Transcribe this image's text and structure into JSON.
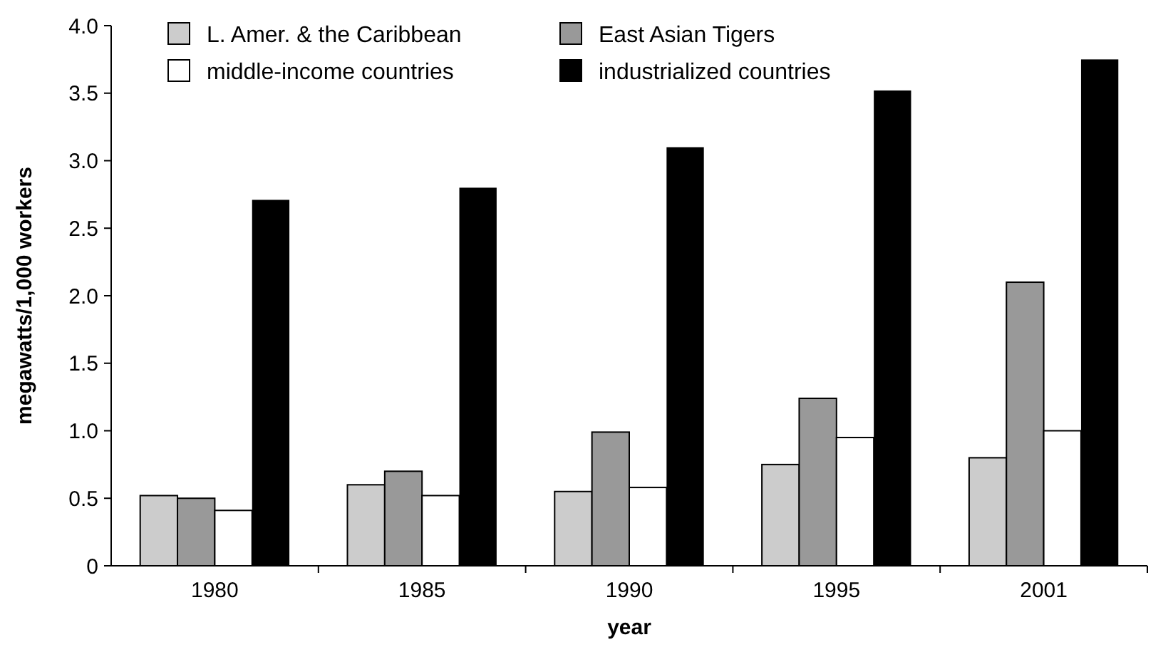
{
  "chart_data": {
    "type": "bar",
    "xlabel": "year",
    "ylabel": "megawatts/1,000 workers",
    "categories": [
      "1980",
      "1985",
      "1990",
      "1995",
      "2001"
    ],
    "series": [
      {
        "name": "L. Amer. & the Caribbean",
        "color": "#cccccc",
        "values": [
          0.52,
          0.6,
          0.55,
          0.75,
          0.8
        ]
      },
      {
        "name": "East Asian Tigers",
        "color": "#999999",
        "values": [
          0.5,
          0.7,
          0.99,
          1.24,
          2.1
        ]
      },
      {
        "name": "middle-income countries",
        "color": "#ffffff",
        "values": [
          0.41,
          0.52,
          0.58,
          0.95,
          1.0
        ]
      },
      {
        "name": "industrialized countries",
        "color": "#000000",
        "values": [
          2.71,
          2.8,
          3.1,
          3.52,
          3.75
        ]
      }
    ],
    "ylim": [
      0,
      4
    ],
    "yticks": [
      0,
      0.5,
      {
        "value": 1,
        "label": "1.0"
      },
      1.5,
      {
        "value": 2,
        "label": "2.0"
      },
      2.5,
      {
        "value": 3,
        "label": "3.0"
      },
      3.5,
      {
        "value": 4,
        "label": "4.0"
      }
    ],
    "legend": "top left"
  }
}
